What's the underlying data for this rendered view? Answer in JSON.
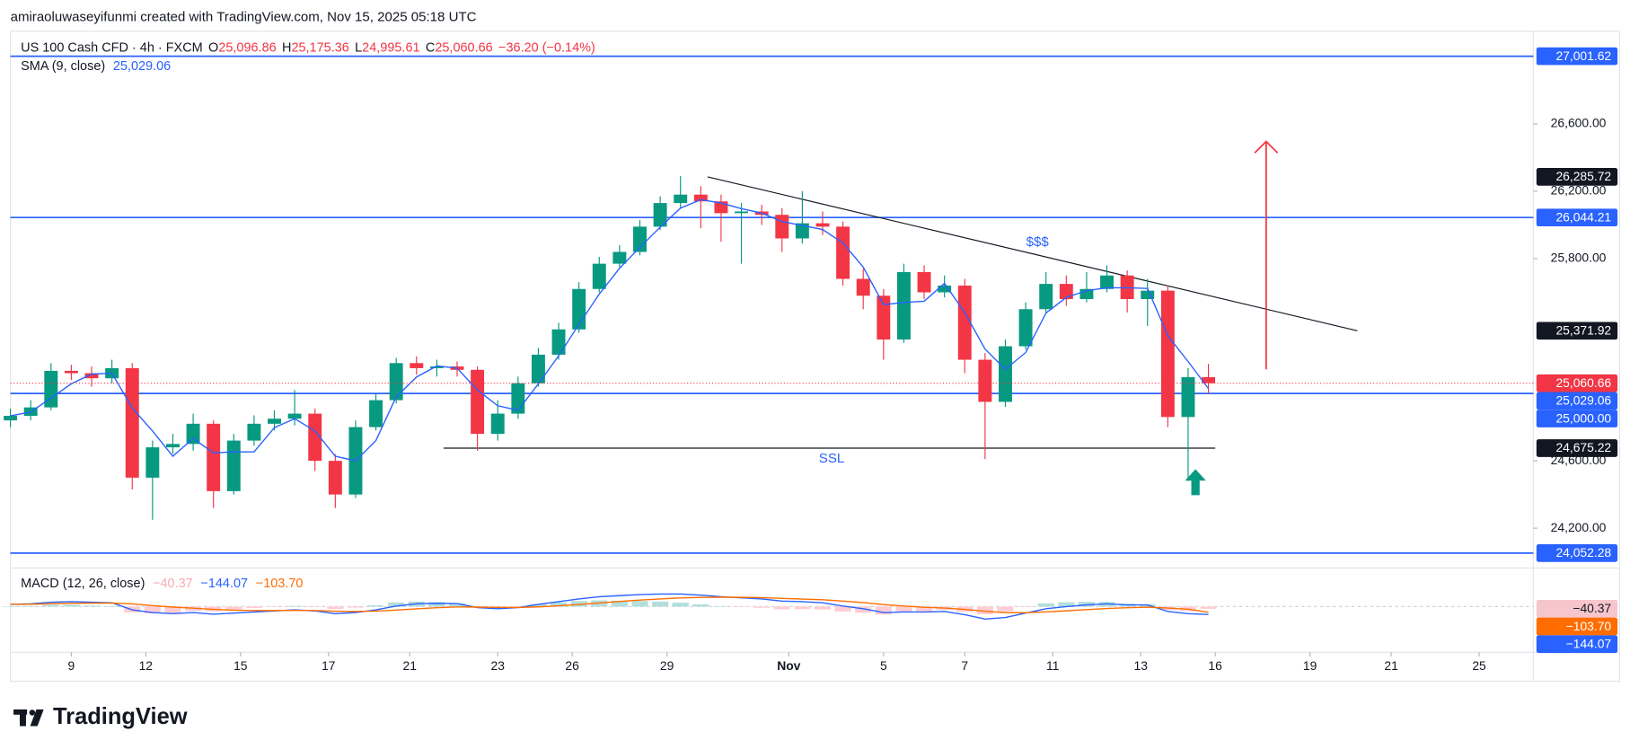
{
  "header": {
    "credit": "amiraoluwaseyifunmi created with TradingView.com, Nov 15, 2025 05:18 UTC",
    "logo": "TradingView"
  },
  "chart_data": {
    "type": "candlestick",
    "legend": {
      "symbol": "US 100 Cash CFD · 4h · FXCM",
      "ohlc": [
        {
          "key": "O",
          "value": "25,096.86"
        },
        {
          "key": "H",
          "value": "25,175.36"
        },
        {
          "key": "L",
          "value": "24,995.61"
        },
        {
          "key": "C",
          "value": "25,060.66"
        }
      ],
      "change": "−36.20 (−0.14%)"
    },
    "up_color": "#089981",
    "down_color": "#f23645",
    "x": [
      0,
      3,
      6,
      9,
      12,
      15,
      18,
      21,
      24,
      27,
      30,
      33,
      36,
      39,
      42,
      45,
      48,
      51,
      54,
      57,
      60,
      63,
      66,
      69,
      72,
      75,
      78,
      81,
      84,
      87,
      90,
      93,
      96,
      99,
      102,
      105,
      108,
      111,
      114,
      117,
      120,
      123,
      126,
      129,
      132,
      135,
      138,
      141,
      144,
      147,
      150,
      153,
      156,
      159,
      162,
      165,
      168,
      171,
      174,
      177
    ],
    "open": [
      24840,
      24867,
      24917,
      25134,
      25120,
      25090,
      25150,
      24500,
      24680,
      24700,
      24820,
      24420,
      24720,
      24820,
      24850,
      24880,
      24600,
      24400,
      24800,
      24960,
      25180,
      25150,
      25160,
      25140,
      24760,
      24880,
      25060,
      25230,
      25380,
      25620,
      25770,
      25840,
      25990,
      26130,
      26180,
      26140,
      26070,
      26080,
      26060,
      25920,
      26010,
      25990,
      25680,
      25580,
      25320,
      25720,
      25600,
      25640,
      25200,
      24950,
      25280,
      25500,
      25650,
      25560,
      25620,
      25700,
      25560,
      25610,
      24860,
      25096.86
    ],
    "high": [
      24910,
      24960,
      25180,
      25170,
      25160,
      25200,
      25180,
      24720,
      24760,
      24880,
      24840,
      24760,
      24870,
      24900,
      25020,
      24910,
      24640,
      24840,
      25000,
      25210,
      25220,
      25200,
      25190,
      25160,
      24960,
      25100,
      25270,
      25420,
      25660,
      25810,
      25880,
      26030,
      26170,
      26290,
      26230,
      26180,
      26130,
      26120,
      26100,
      26200,
      26080,
      26020,
      25740,
      25620,
      25770,
      25760,
      25700,
      25680,
      25240,
      25320,
      25540,
      25720,
      25700,
      25720,
      25760,
      25730,
      25680,
      25640,
      25150,
      25175.36
    ],
    "low": [
      24800,
      24840,
      24900,
      25080,
      25040,
      25060,
      24430,
      24250,
      24640,
      24660,
      24320,
      24400,
      24690,
      24780,
      24810,
      24540,
      24320,
      24380,
      24780,
      24940,
      25110,
      25100,
      25100,
      24660,
      24720,
      24850,
      25040,
      25200,
      25360,
      25600,
      25740,
      25820,
      25970,
      26100,
      25980,
      25900,
      25770,
      26000,
      25840,
      25890,
      25940,
      25640,
      25500,
      25200,
      25300,
      25560,
      25570,
      25120,
      24610,
      24920,
      25260,
      25480,
      25520,
      25540,
      25600,
      25480,
      25400,
      24800,
      24480,
      24995.61
    ],
    "close": [
      24867,
      24917,
      25134,
      25120,
      25090,
      25150,
      24500,
      24680,
      24700,
      24820,
      24420,
      24720,
      24820,
      24850,
      24880,
      24600,
      24400,
      24800,
      24960,
      25180,
      25150,
      25160,
      25140,
      24760,
      24880,
      25060,
      25230,
      25380,
      25620,
      25770,
      25840,
      25990,
      26130,
      26180,
      26140,
      26070,
      26080,
      26060,
      25920,
      26010,
      25990,
      25680,
      25580,
      25320,
      25720,
      25600,
      25640,
      25200,
      24950,
      25280,
      25500,
      25650,
      25560,
      25620,
      25700,
      25560,
      25610,
      24860,
      25096.86,
      25060.66
    ],
    "current_label": "25,060.66",
    "xlim": [
      0,
      225
    ],
    "xticks": [
      {
        "value": 9,
        "label": "9"
      },
      {
        "value": 20,
        "label": "12"
      },
      {
        "value": 34,
        "label": "15"
      },
      {
        "value": 47,
        "label": "17"
      },
      {
        "value": 59,
        "label": "21"
      },
      {
        "value": 72,
        "label": "23"
      },
      {
        "value": 83,
        "label": "26"
      },
      {
        "value": 97,
        "label": "29"
      },
      {
        "value": 115,
        "label": "Nov"
      },
      {
        "value": 129,
        "label": "5"
      },
      {
        "value": 141,
        "label": "7"
      },
      {
        "value": 154,
        "label": "11"
      },
      {
        "value": 167,
        "label": "13"
      },
      {
        "value": 178,
        "label": "16"
      },
      {
        "value": 192,
        "label": "19"
      },
      {
        "value": 204,
        "label": "21"
      },
      {
        "value": 217,
        "label": "25"
      }
    ],
    "ylim": [
      23970,
      27150
    ],
    "yticks": [
      {
        "value": 24200,
        "label": "24,200.00"
      },
      {
        "value": 24600,
        "label": "24,600.00"
      },
      {
        "value": 25800,
        "label": "25,800.00"
      },
      {
        "value": 26200,
        "label": "26,200.00"
      },
      {
        "value": 26600,
        "label": "26,600.00"
      }
    ],
    "grid": false,
    "levels_color": "#2962ff",
    "levels": [
      {
        "value": 27001.62,
        "label": "27,001.62"
      },
      {
        "value": 26044.21,
        "label": "26,044.21"
      },
      {
        "value": 25000,
        "label": "25,000.00"
      },
      {
        "value": 24052.28,
        "label": "24,052.28"
      }
    ],
    "drawings": [
      {
        "x": [
          103,
          199
        ],
        "points": [
          {
            "value": 26285.72,
            "label": "26,285.72"
          },
          {
            "value": 25371.92,
            "label": "25,371.92"
          }
        ]
      },
      {
        "x": [
          64,
          178
        ],
        "points": [
          {
            "value": 24675.22,
            "label": "24,675.22"
          }
        ]
      }
    ],
    "annotations": {
      "top": "$$$",
      "bottom": "SSL"
    },
    "sma": {
      "name": "SMA (9, close)",
      "color": "#2962ff",
      "last_label": "25,029.06",
      "values": [
        24867,
        24890,
        24973,
        25057,
        25115,
        25120,
        24913,
        24777,
        24627,
        24733,
        24647,
        24653,
        24653,
        24797,
        24850,
        24777,
        24627,
        24600,
        24720,
        24980,
        25097,
        25163,
        25150,
        25020,
        24927,
        24900,
        25057,
        25223,
        25410,
        25590,
        25743,
        25867,
        25987,
        26100,
        26150,
        26130,
        26097,
        26070,
        26020,
        25997,
        25973,
        25893,
        25750,
        25527,
        25540,
        25547,
        25653,
        25480,
        25263,
        25143,
        25243,
        25477,
        25570,
        25610,
        25627,
        25627,
        25623,
        25343,
        25189,
        25029.06
      ]
    },
    "macd": {
      "name": "MACD (12, 26, close)",
      "ylim": [
        -800,
        650
      ],
      "histogram": {
        "last_label": "−40.37",
        "up_color": "#b2dfdb",
        "down_color": "#ffcdd2",
        "box_color": "#f7c5cc",
        "values": [
          0,
          8,
          30,
          32,
          17,
          5,
          -108,
          -128,
          -120,
          -80,
          -88,
          -54,
          -27,
          -6,
          11,
          -7,
          -45,
          -20,
          24,
          75,
          92,
          82,
          62,
          -10,
          -24,
          -3,
          46,
          77,
          102,
          114,
          107,
          102,
          90,
          72,
          42,
          9,
          -9,
          -23,
          -50,
          -48,
          -54,
          -91,
          -113,
          -146,
          -109,
          -87,
          -62,
          -97,
          -142,
          -89,
          -7,
          58,
          78,
          86,
          85,
          52,
          42,
          -62,
          -82,
          -40.37
        ]
      },
      "line": {
        "last_label": "−144.07",
        "color": "#2962ff",
        "values": [
          40,
          50,
          80,
          90,
          80,
          70,
          -60,
          -110,
          -130,
          -110,
          -140,
          -120,
          -100,
          -80,
          -60,
          -80,
          -130,
          -110,
          -60,
          10,
          50,
          60,
          55,
          -20,
          -40,
          -20,
          40,
          90,
          140,
          180,
          200,
          220,
          230,
          230,
          210,
          180,
          160,
          140,
          100,
          90,
          70,
          10,
          -40,
          -110,
          -100,
          -100,
          -90,
          -150,
          -230,
          -200,
          -120,
          -40,
          0,
          30,
          50,
          30,
          30,
          -90,
          -130,
          -144.07
        ]
      },
      "signal": {
        "last_label": "−103.70",
        "color": "#ff6d00",
        "values": [
          40,
          42,
          50,
          58,
          63,
          65,
          48,
          18,
          -10,
          -30,
          -52,
          -66,
          -73,
          -74,
          -71,
          -73,
          -85,
          -90,
          -84,
          -65,
          -42,
          -22,
          -7,
          -10,
          -16,
          -17,
          -6,
          13,
          38,
          66,
          93,
          118,
          140,
          158,
          168,
          171,
          169,
          163,
          150,
          138,
          124,
          101,
          73,
          36,
          9,
          -13,
          -28,
          -53,
          -88,
          -111,
          -113,
          -98,
          -78,
          -56,
          -35,
          -22,
          -12,
          -28,
          -48,
          -103.7
        ]
      }
    }
  }
}
